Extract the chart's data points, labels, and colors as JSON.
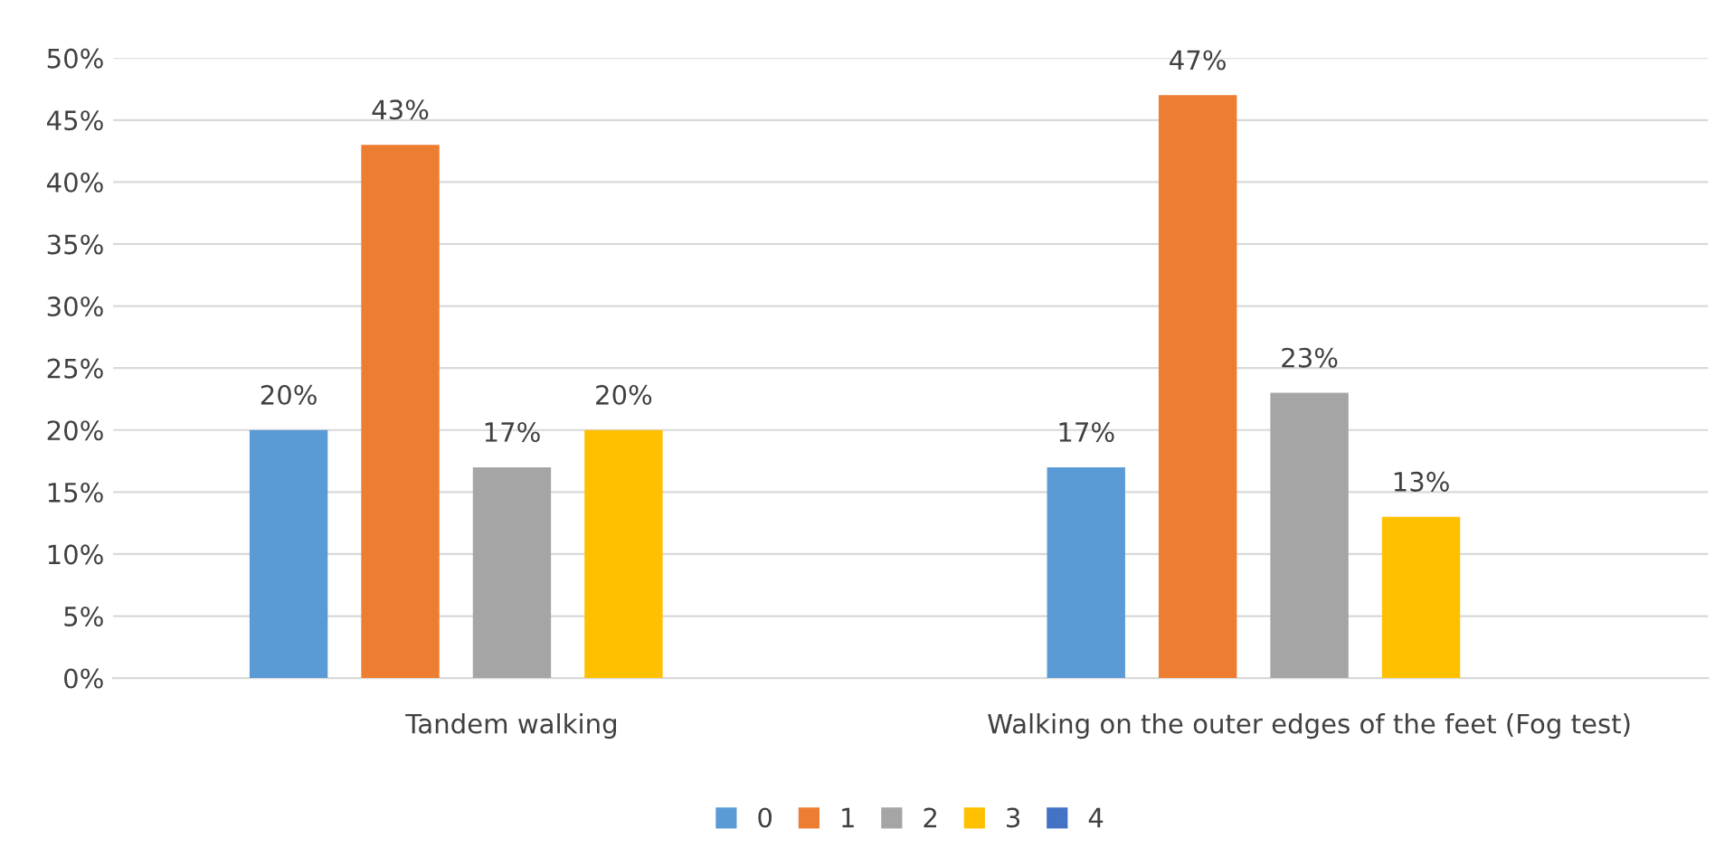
{
  "chart_data": {
    "type": "bar",
    "categories": [
      "Tandem walking",
      "Walking on the outer edges of the feet (Fog test)"
    ],
    "series": [
      {
        "name": "0",
        "color": "#5b9bd5",
        "values": [
          20,
          17
        ],
        "value_labels": [
          "20%",
          "17%"
        ]
      },
      {
        "name": "1",
        "color": "#ed7d31",
        "values": [
          43,
          47
        ],
        "value_labels": [
          "43%",
          "47%"
        ]
      },
      {
        "name": "2",
        "color": "#a5a5a5",
        "values": [
          17,
          23
        ],
        "value_labels": [
          "17%",
          "23%"
        ]
      },
      {
        "name": "3",
        "color": "#ffc000",
        "values": [
          20,
          13
        ],
        "value_labels": [
          "20%",
          "13%"
        ]
      },
      {
        "name": "4",
        "color": "#4472c4",
        "values": [
          null,
          null
        ],
        "value_labels": [
          null,
          null
        ]
      }
    ],
    "ylim": [
      0,
      50
    ],
    "yticks": [
      {
        "value": 0,
        "label": "0%"
      },
      {
        "value": 5,
        "label": "5%"
      },
      {
        "value": 10,
        "label": "10%"
      },
      {
        "value": 15,
        "label": "15%"
      },
      {
        "value": 20,
        "label": "20%"
      },
      {
        "value": 25,
        "label": "25%"
      },
      {
        "value": 30,
        "label": "30%"
      },
      {
        "value": 35,
        "label": "35%"
      },
      {
        "value": 40,
        "label": "40%"
      },
      {
        "value": 45,
        "label": "45%"
      },
      {
        "value": 50,
        "label": "50%"
      }
    ],
    "grid": "y",
    "legend": "bottom"
  }
}
